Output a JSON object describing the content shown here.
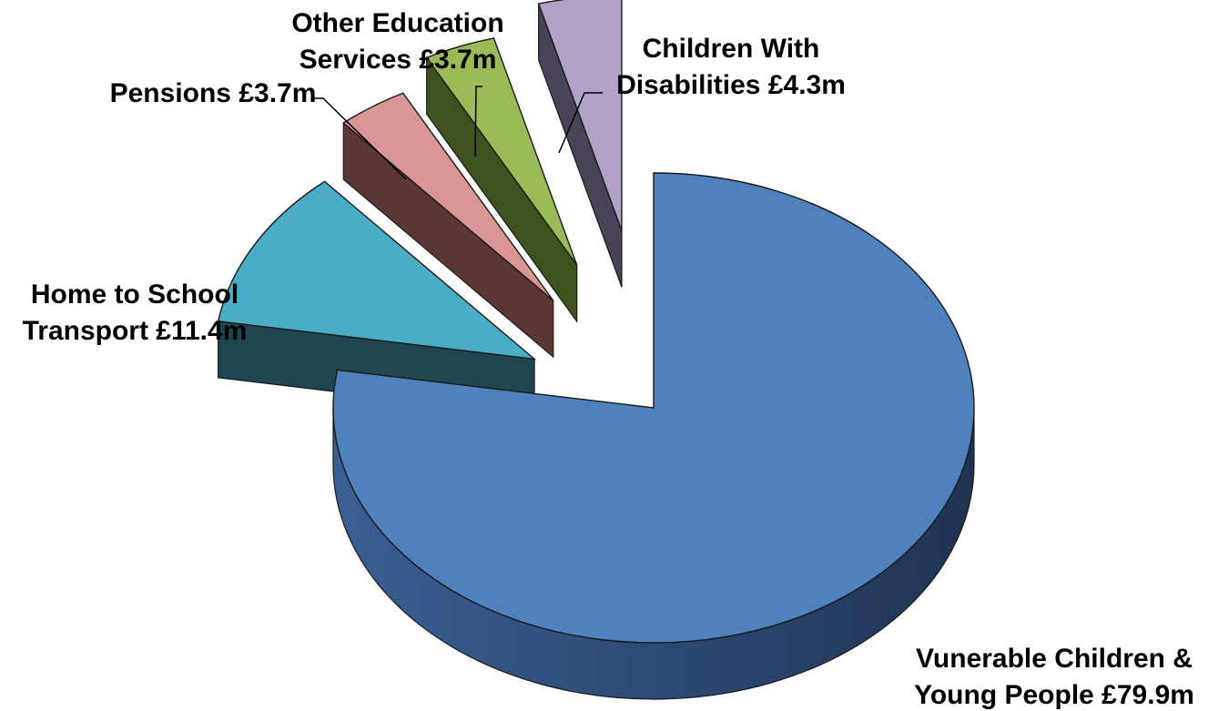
{
  "chart_data": {
    "type": "pie",
    "style": "3d-exploded",
    "unit": "£m",
    "slices": [
      {
        "name": "Vunerable Children & Young People",
        "value": 79.9,
        "label_lines": [
          "Vunerable Children &",
          "Young People £79.9m"
        ],
        "color": "#4F81BD"
      },
      {
        "name": "Home to School Transport",
        "value": 11.4,
        "label_lines": [
          "Home to School",
          "Transport £11.4m"
        ],
        "color": "#4BACC6"
      },
      {
        "name": "Pensions",
        "value": 3.7,
        "label_lines": [
          "Pensions £3.7m"
        ],
        "color": "#D99694"
      },
      {
        "name": "Other Education Services",
        "value": 3.7,
        "label_lines": [
          "Other Education",
          "Services £3.7m"
        ],
        "color": "#9BBB59"
      },
      {
        "name": "Children With Disabilities",
        "value": 4.3,
        "label_lines": [
          "Children With",
          "Disabilities £4.3m"
        ],
        "color": "#B2A2C7"
      }
    ]
  }
}
